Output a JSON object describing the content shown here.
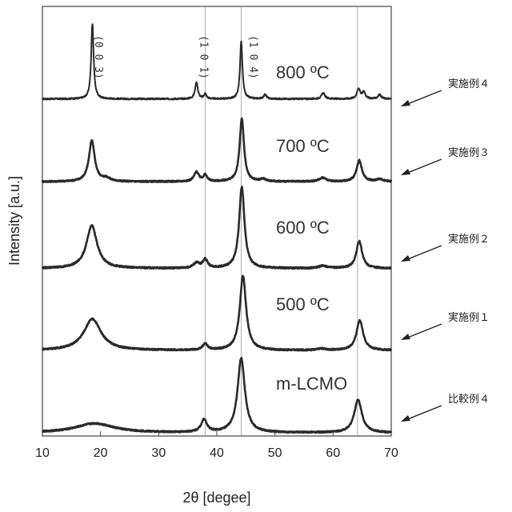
{
  "chart_data": {
    "type": "line",
    "title": "",
    "xlabel": "2θ [degee]",
    "ylabel": "Intensity [a.u.]",
    "xlim": [
      10,
      70
    ],
    "xticks": [
      10,
      20,
      30,
      40,
      50,
      60,
      70
    ],
    "grid": false,
    "reference_lines_x": [
      38,
      44.2,
      64.2
    ],
    "peak_labels": [
      {
        "text": "(0 0 3)",
        "x": 18.7
      },
      {
        "text": "(1 0 1)",
        "x": 36.8
      },
      {
        "text": "(1 0 4)",
        "x": 45.3
      }
    ],
    "series": [
      {
        "name": "実施例４",
        "label": "800 ºC",
        "baseline": 0.06,
        "peaks": [
          {
            "x": 18.6,
            "h": 0.9,
            "w": 0.25
          },
          {
            "x": 36.5,
            "h": 0.2,
            "w": 0.28
          },
          {
            "x": 38.0,
            "h": 0.06,
            "w": 0.25
          },
          {
            "x": 44.2,
            "h": 0.68,
            "w": 0.25
          },
          {
            "x": 48.3,
            "h": 0.05,
            "w": 0.3
          },
          {
            "x": 58.3,
            "h": 0.07,
            "w": 0.35
          },
          {
            "x": 64.4,
            "h": 0.12,
            "w": 0.35
          },
          {
            "x": 65.3,
            "h": 0.08,
            "w": 0.3
          },
          {
            "x": 68.0,
            "h": 0.05,
            "w": 0.35
          }
        ]
      },
      {
        "name": "実施例３",
        "label": "700 ºC",
        "baseline": 0.07,
        "peaks": [
          {
            "x": 18.5,
            "h": 0.52,
            "w": 0.6
          },
          {
            "x": 21.0,
            "h": 0.04,
            "w": 0.8
          },
          {
            "x": 36.5,
            "h": 0.12,
            "w": 0.5
          },
          {
            "x": 38.0,
            "h": 0.08,
            "w": 0.4
          },
          {
            "x": 44.3,
            "h": 0.8,
            "w": 0.45
          },
          {
            "x": 48.0,
            "h": 0.03,
            "w": 0.6
          },
          {
            "x": 58.2,
            "h": 0.05,
            "w": 0.7
          },
          {
            "x": 64.5,
            "h": 0.27,
            "w": 0.55
          },
          {
            "x": 68.0,
            "h": 0.03,
            "w": 0.7
          }
        ]
      },
      {
        "name": "実施例２",
        "label": "600 ºC",
        "baseline": 0.06,
        "peaks": [
          {
            "x": 18.5,
            "h": 0.5,
            "w": 1.1
          },
          {
            "x": 36.5,
            "h": 0.06,
            "w": 0.6
          },
          {
            "x": 38.0,
            "h": 0.1,
            "w": 0.5
          },
          {
            "x": 44.3,
            "h": 0.95,
            "w": 0.55
          },
          {
            "x": 58.3,
            "h": 0.03,
            "w": 0.8
          },
          {
            "x": 64.5,
            "h": 0.32,
            "w": 0.6
          }
        ]
      },
      {
        "name": "実施例１",
        "label": "500 ºC",
        "baseline": 0.06,
        "peaks": [
          {
            "x": 18.6,
            "h": 0.4,
            "w": 1.8
          },
          {
            "x": 38.0,
            "h": 0.08,
            "w": 0.5
          },
          {
            "x": 44.5,
            "h": 0.95,
            "w": 0.65
          },
          {
            "x": 58.0,
            "h": 0.02,
            "w": 0.8
          },
          {
            "x": 64.6,
            "h": 0.38,
            "w": 0.7
          }
        ]
      },
      {
        "name": "比較例４",
        "label": "m-LCMO",
        "baseline": 0.05,
        "peaks": [
          {
            "x": 19.0,
            "h": 0.12,
            "w": 4.0
          },
          {
            "x": 37.8,
            "h": 0.16,
            "w": 0.6
          },
          {
            "x": 44.2,
            "h": 0.95,
            "w": 0.75
          },
          {
            "x": 64.3,
            "h": 0.42,
            "w": 0.8
          }
        ]
      }
    ]
  }
}
